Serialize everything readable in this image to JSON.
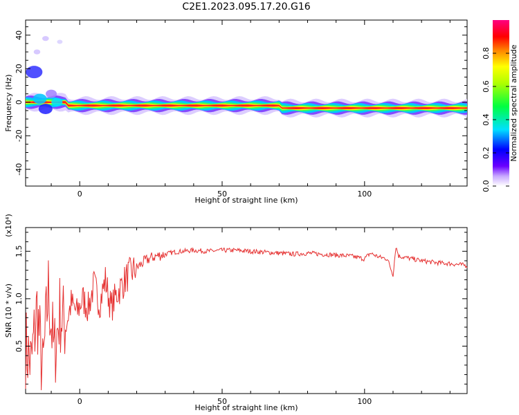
{
  "title": "C2E1.2023.095.17.20.G16",
  "chart_data": [
    {
      "type": "heatmap",
      "xlabel": "Height of straight line (km)",
      "ylabel": "Frequency (Hz)",
      "xlim": [
        -19,
        136
      ],
      "ylim": [
        -50,
        49
      ],
      "xticks": [
        "0",
        "50",
        "100"
      ],
      "yticks": [
        "40",
        "20",
        "0",
        "-20",
        "-40"
      ],
      "ridge": {
        "x_range": [
          -19,
          136
        ],
        "frequency_hz": -2,
        "description_segments": [
          {
            "x0": -19,
            "x1": -5,
            "f": 0
          },
          {
            "x0": -5,
            "x1": 70,
            "f": -2
          },
          {
            "x0": 70,
            "x1": 136,
            "f": -3.5
          }
        ]
      },
      "colorbar": {
        "label": "Normalized spectral amplitude",
        "range": [
          0,
          1
        ],
        "ticks": [
          "0.0",
          "0.2",
          "0.4",
          "0.6",
          "0.8"
        ]
      }
    },
    {
      "type": "line",
      "xlabel": "Height of straight line (km)",
      "ylabel": "SNR (10 * v/v)",
      "yscale_note": "(x10⁴)",
      "xlim": [
        -19,
        136
      ],
      "ylim": [
        0,
        17500
      ],
      "xticks": [
        "0",
        "50",
        "100"
      ],
      "yticks": [
        "1.5",
        "1.0",
        "0.5"
      ],
      "color": "#e53030",
      "series": [
        {
          "x": [
            -19,
            -17,
            -15,
            -13,
            -11,
            -9,
            -7,
            -5,
            -3,
            -1,
            1,
            3,
            5,
            7,
            9,
            11,
            13,
            15,
            17,
            19,
            21,
            23,
            25,
            27,
            30,
            33,
            36,
            40,
            45,
            50,
            55,
            60,
            65,
            70,
            75,
            80,
            85,
            90,
            95,
            100,
            102,
            105,
            108,
            110,
            111,
            112,
            115,
            120,
            125,
            130,
            136
          ],
          "y": [
            5000,
            3000,
            9000,
            2000,
            11000,
            4000,
            8500,
            7000,
            9500,
            8500,
            10000,
            9000,
            11500,
            9500,
            12000,
            9000,
            10500,
            11500,
            12500,
            13000,
            13500,
            14000,
            14300,
            14500,
            14700,
            14900,
            15000,
            15100,
            15000,
            15100,
            15100,
            15000,
            14900,
            14800,
            14700,
            14800,
            14700,
            14600,
            14500,
            14200,
            14800,
            14400,
            14200,
            12500,
            15500,
            14500,
            14300,
            14000,
            13800,
            13700,
            13500
          ]
        }
      ]
    }
  ],
  "colors": {
    "line": "#e53030",
    "ridge_core": "#ff1a1a",
    "background": "#ffffff"
  }
}
